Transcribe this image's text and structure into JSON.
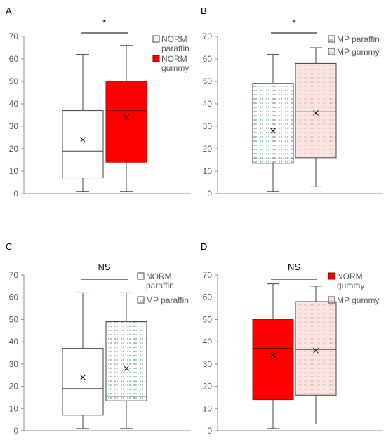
{
  "chart_data": [
    {
      "panel": "A",
      "type": "boxplot",
      "ylim": [
        0,
        70
      ],
      "yticks": [
        0,
        10,
        20,
        30,
        40,
        50,
        60,
        70
      ],
      "significance": "*",
      "legend": [
        {
          "lines": [
            "NORM",
            "paraffin"
          ],
          "series": 0
        },
        {
          "lines": [
            "NORM",
            "gummy"
          ],
          "series": 1
        }
      ],
      "series": [
        {
          "style": "white",
          "whisker_low": 1,
          "q1": 7,
          "median": 19,
          "q3": 37,
          "whisker_high": 62,
          "mean": 24
        },
        {
          "style": "red",
          "whisker_low": 1,
          "q1": 14,
          "median": 37,
          "q3": 50,
          "whisker_high": 66,
          "mean": 34
        }
      ]
    },
    {
      "panel": "B",
      "type": "boxplot",
      "ylim": [
        0,
        70
      ],
      "yticks": [
        0,
        10,
        20,
        30,
        40,
        50,
        60,
        70
      ],
      "significance": "*",
      "legend": [
        {
          "lines": [
            "MP paraffin"
          ],
          "series": 0
        },
        {
          "lines": [
            "MP gummy"
          ],
          "series": 1
        }
      ],
      "series": [
        {
          "style": "teal-hatch",
          "whisker_low": 1,
          "q1": 13.5,
          "median": 15.5,
          "q3": 49,
          "whisker_high": 62,
          "mean": 28
        },
        {
          "style": "pink-hatch",
          "whisker_low": 3,
          "q1": 16,
          "median": 36.5,
          "q3": 58,
          "whisker_high": 65,
          "mean": 36
        }
      ]
    },
    {
      "panel": "C",
      "type": "boxplot",
      "ylim": [
        0,
        70
      ],
      "yticks": [
        0,
        10,
        20,
        30,
        40,
        50,
        60,
        70
      ],
      "significance": "NS",
      "legend": [
        {
          "lines": [
            "NORM",
            "paraffin"
          ],
          "series": 0
        },
        {
          "lines": [
            "MP paraffin"
          ],
          "series": 1
        }
      ],
      "series": [
        {
          "style": "white",
          "whisker_low": 1,
          "q1": 7,
          "median": 19,
          "q3": 37,
          "whisker_high": 62,
          "mean": 24
        },
        {
          "style": "teal-hatch",
          "whisker_low": 1,
          "q1": 13.5,
          "median": 15.5,
          "q3": 49,
          "whisker_high": 62,
          "mean": 28
        }
      ]
    },
    {
      "panel": "D",
      "type": "boxplot",
      "ylim": [
        0,
        70
      ],
      "yticks": [
        0,
        10,
        20,
        30,
        40,
        50,
        60,
        70
      ],
      "significance": "NS",
      "legend": [
        {
          "lines": [
            "NORM",
            "gummy"
          ],
          "series": 0
        },
        {
          "lines": [
            "MP gummy"
          ],
          "series": 1
        }
      ],
      "series": [
        {
          "style": "red",
          "whisker_low": 1,
          "q1": 14,
          "median": 37,
          "q3": 50,
          "whisker_high": 66,
          "mean": 34
        },
        {
          "style": "pink-hatch",
          "whisker_low": 3,
          "q1": 16,
          "median": 36.5,
          "q3": 58,
          "whisker_high": 65,
          "mean": 36
        }
      ]
    }
  ],
  "colors": {
    "red_fill": "#ff0000",
    "red_stroke": "#c00000",
    "teal_hatch_bg": "#ffffff",
    "teal_hatch_mark": "#4a8f8c",
    "pink_hatch_bg": "#fbe4e4",
    "pink_hatch_mark": "#d9a6a6",
    "axis": "#8c8c8c"
  }
}
